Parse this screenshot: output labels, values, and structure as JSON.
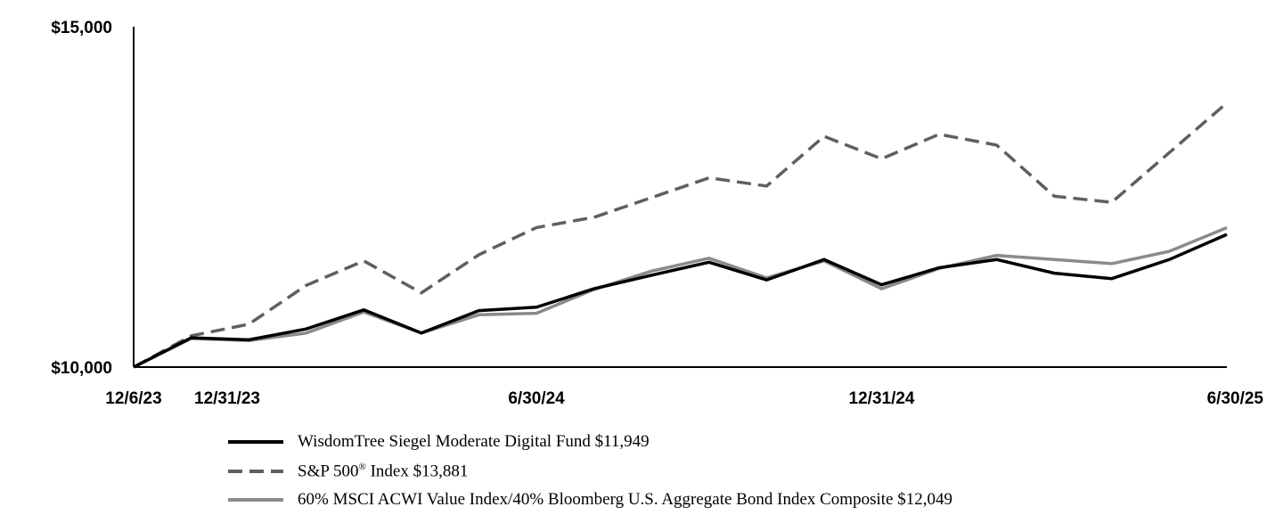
{
  "chart_data": {
    "type": "line",
    "title": "",
    "xlabel": "",
    "ylabel": "",
    "ylim": [
      10000,
      15000
    ],
    "y_ticks": [
      "$10,000",
      "$15,000"
    ],
    "x_tick_labels": [
      "12/6/23",
      "12/31/23",
      "6/30/24",
      "12/31/24",
      "6/30/25"
    ],
    "x_tick_positions": [
      0,
      1,
      7,
      13,
      19
    ],
    "legend_position": "bottom",
    "grid": false,
    "series": [
      {
        "name": "WisdomTree Siegel Moderate Digital Fund $11,949",
        "color": "#000000",
        "style": "solid",
        "values": [
          10000,
          10430,
          10400,
          10560,
          10840,
          10500,
          10830,
          10880,
          11150,
          11350,
          11540,
          11280,
          11580,
          11210,
          11460,
          11580,
          11380,
          11300,
          11580,
          11949
        ]
      },
      {
        "name": "S&P 500® Index $13,881",
        "color": "#5f5f5f",
        "style": "dashed",
        "values": [
          10000,
          10460,
          10630,
          11200,
          11560,
          11090,
          11650,
          12050,
          12200,
          12490,
          12780,
          12660,
          13390,
          13060,
          13420,
          13260,
          12510,
          12420,
          13150,
          13881
        ]
      },
      {
        "name": "60% MSCI ACWI Value Index/40% Bloomberg U.S. Aggregate Bond Index Composite $12,049",
        "color": "#8a8a8a",
        "style": "solid",
        "values": [
          10000,
          10420,
          10390,
          10500,
          10810,
          10500,
          10770,
          10790,
          11140,
          11410,
          11600,
          11310,
          11560,
          11150,
          11450,
          11640,
          11580,
          11520,
          11700,
          12049
        ]
      }
    ]
  },
  "legend": {
    "items": [
      {
        "label": "WisdomTree Siegel Moderate Digital Fund $11,949",
        "color": "#000000",
        "style": "solid"
      },
      {
        "label_before": "S&P 500",
        "label_sup": "®",
        "label_after": " Index $13,881",
        "color": "#5f5f5f",
        "style": "dashed"
      },
      {
        "label": "60% MSCI ACWI Value Index/40% Bloomberg U.S. Aggregate Bond Index Composite $12,049",
        "color": "#8a8a8a",
        "style": "solid"
      }
    ]
  }
}
